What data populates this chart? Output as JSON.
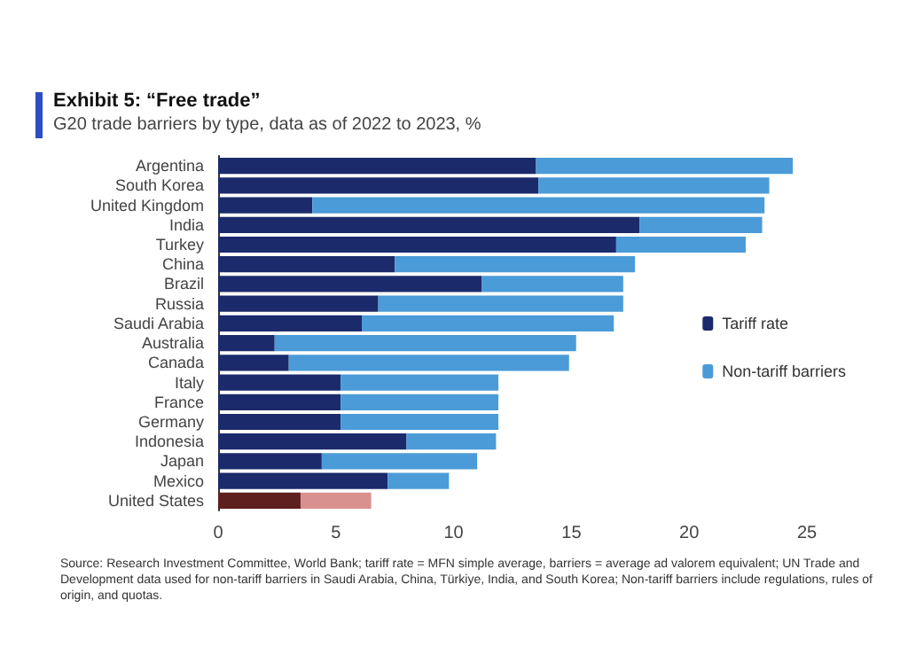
{
  "chart_data": {
    "type": "bar",
    "orientation": "horizontal",
    "stacked": true,
    "title": "Exhibit 5: “Free trade”",
    "subtitle": "G20 trade barriers by type, data as of 2022 to 2023, %",
    "categories": [
      "Argentina",
      "South Korea",
      "United Kingdom",
      "India",
      "Turkey",
      "China",
      "Brazil",
      "Russia",
      "Saudi Arabia",
      "Australia",
      "Canada",
      "Italy",
      "France",
      "Germany",
      "Indonesia",
      "Japan",
      "Mexico",
      "United States"
    ],
    "series": [
      {
        "name": "Tariff rate",
        "color": "#1b2a6b",
        "colors": [
          "#1b2a6b",
          "#1b2a6b",
          "#1b2a6b",
          "#1b2a6b",
          "#1b2a6b",
          "#1b2a6b",
          "#1b2a6b",
          "#1b2a6b",
          "#1b2a6b",
          "#1b2a6b",
          "#1b2a6b",
          "#1b2a6b",
          "#1b2a6b",
          "#1b2a6b",
          "#1b2a6b",
          "#1b2a6b",
          "#1b2a6b",
          "#5e1f1f"
        ],
        "values": [
          13.5,
          13.6,
          4.0,
          17.9,
          16.9,
          7.5,
          11.2,
          6.8,
          6.1,
          2.4,
          3.0,
          5.2,
          5.2,
          5.2,
          8.0,
          4.4,
          7.2,
          3.5
        ]
      },
      {
        "name": "Non-tariff barriers",
        "color": "#4a9bd8",
        "colors": [
          "#4a9bd8",
          "#4a9bd8",
          "#4a9bd8",
          "#4a9bd8",
          "#4a9bd8",
          "#4a9bd8",
          "#4a9bd8",
          "#4a9bd8",
          "#4a9bd8",
          "#4a9bd8",
          "#4a9bd8",
          "#4a9bd8",
          "#4a9bd8",
          "#4a9bd8",
          "#4a9bd8",
          "#4a9bd8",
          "#4a9bd8",
          "#d9918f"
        ],
        "values": [
          10.9,
          9.8,
          19.2,
          5.2,
          5.5,
          10.2,
          6.0,
          10.4,
          10.7,
          12.8,
          11.9,
          6.7,
          6.7,
          6.7,
          3.8,
          6.6,
          2.6,
          3.0
        ]
      }
    ],
    "xlim": [
      0,
      25
    ],
    "xticks": [
      0,
      5,
      10,
      15,
      20,
      25
    ],
    "grid": false,
    "legend": "right",
    "annotations": [
      "Source: Research Investment Committee, World Bank; tariff rate = MFN simple average, barriers = average ad valorem equivalent; UN Trade and Development data used for non-tariff barriers in Saudi Arabia, China, Türkiye, India, and South Korea; Non-tariff barriers include regulations, rules of origin, and quotas."
    ]
  }
}
